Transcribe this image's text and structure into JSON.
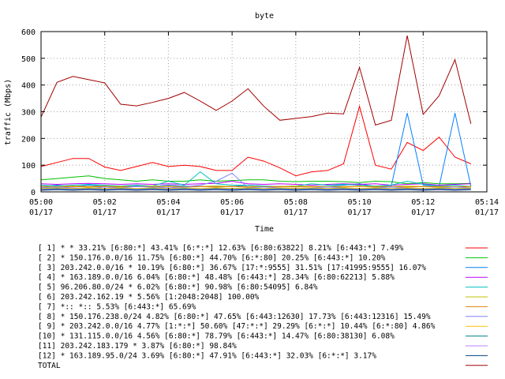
{
  "chart_data": {
    "type": "line",
    "title": "byte",
    "xlabel": "Time",
    "ylabel": "traffic (Mbps)",
    "ylim": [
      0,
      600
    ],
    "xlim": [
      0,
      28
    ],
    "yticks": [
      0,
      100,
      200,
      300,
      400,
      500,
      600
    ],
    "xticks": [
      {
        "x": 0,
        "time": "05:00",
        "date": "01/17"
      },
      {
        "x": 4,
        "time": "05:02",
        "date": "01/17"
      },
      {
        "x": 8,
        "time": "05:04",
        "date": "01/17"
      },
      {
        "x": 12,
        "time": "05:06",
        "date": "01/17"
      },
      {
        "x": 16,
        "time": "05:08",
        "date": "01/17"
      },
      {
        "x": 20,
        "time": "05:10",
        "date": "01/17"
      },
      {
        "x": 24,
        "time": "05:12",
        "date": "01/17"
      },
      {
        "x": 28,
        "time": "05:14",
        "date": "01/17"
      }
    ],
    "x": [
      0,
      1,
      2,
      3,
      4,
      5,
      6,
      7,
      8,
      9,
      10,
      11,
      12,
      13,
      14,
      15,
      16,
      17,
      18,
      19,
      20,
      21,
      22,
      23,
      24,
      25,
      26,
      27
    ],
    "series": [
      {
        "name": "[ 1] * * 33.21%  [6:80:*] 43.41% [6:*:*] 12.63% [6:80:63822] 8.21% [6:443:*] 7.49%",
        "color": "#ff0000",
        "values": [
          95,
          110,
          125,
          125,
          93,
          80,
          95,
          110,
          95,
          100,
          95,
          80,
          80,
          130,
          115,
          90,
          60,
          75,
          80,
          105,
          320,
          100,
          85,
          185,
          155,
          205,
          130,
          105
        ]
      },
      {
        "name": "[ 2] * 150.176.0.0/16 11.75%  [6:80:*] 44.70% [6:*:80] 20.25% [6:443:*] 10.20%",
        "color": "#00c000",
        "values": [
          45,
          50,
          55,
          60,
          50,
          45,
          40,
          45,
          40,
          40,
          45,
          40,
          42,
          45,
          45,
          40,
          38,
          40,
          40,
          38,
          35,
          40,
          38,
          30,
          35,
          30,
          30,
          32
        ]
      },
      {
        "name": "[ 3] 203.242.0.0/16 * 10.19%  [6:80:*] 36.67% [17:*:9555] 31.51% [17:41995:9555] 16.07%",
        "color": "#0080ff",
        "values": [
          20,
          25,
          20,
          25,
          22,
          20,
          22,
          20,
          25,
          22,
          20,
          22,
          20,
          25,
          22,
          20,
          22,
          20,
          20,
          25,
          30,
          20,
          22,
          295,
          25,
          20,
          295,
          20
        ]
      },
      {
        "name": "[ 4] * 163.189.0.0/16 6.04%  [6:80:*] 48.48% [6:443:*] 28.34% [6:80:62213] 5.88%",
        "color": "#c000ff",
        "values": [
          30,
          28,
          30,
          32,
          30,
          28,
          30,
          28,
          30,
          28,
          30,
          32,
          40,
          30,
          28,
          30,
          28,
          25,
          28,
          30,
          28,
          30,
          25,
          28,
          30,
          25,
          28,
          30
        ]
      },
      {
        "name": "[ 5] 96.206.80.0/24 * 6.02%  [6:80:*] 90.98% [6:80:54095] 6.84%",
        "color": "#00c0c0",
        "values": [
          25,
          22,
          25,
          28,
          25,
          22,
          25,
          22,
          40,
          25,
          75,
          30,
          25,
          25,
          22,
          20,
          22,
          30,
          25,
          28,
          25,
          22,
          25,
          40,
          28,
          22,
          25,
          20
        ]
      },
      {
        "name": "[ 6] 203.242.162.19 * 5.56%  [1:2048:2048] 100.00%",
        "color": "#c0c000",
        "values": [
          20,
          20,
          22,
          20,
          22,
          20,
          20,
          22,
          20,
          20,
          20,
          22,
          20,
          20,
          20,
          20,
          22,
          20,
          20,
          20,
          20,
          20,
          20,
          22,
          20,
          20,
          20,
          20
        ]
      },
      {
        "name": "[ 7] *:: *:: 5.53%  [6:443:*] 65.69%",
        "color": "#e08000",
        "values": [
          18,
          18,
          20,
          18,
          20,
          18,
          20,
          18,
          22,
          18,
          20,
          18,
          20,
          18,
          18,
          20,
          18,
          20,
          18,
          18,
          22,
          18,
          20,
          18,
          20,
          18,
          18,
          20
        ]
      },
      {
        "name": "[ 8] * 150.176.238.0/24 4.82%  [6:80:*] 47.65% [6:443:12630] 17.73% [6:443:12316] 15.49%",
        "color": "#8080ff",
        "values": [
          15,
          18,
          15,
          12,
          18,
          15,
          20,
          18,
          15,
          18,
          25,
          40,
          70,
          15,
          18,
          15,
          12,
          15,
          18,
          15,
          12,
          15,
          18,
          15,
          12,
          15,
          18,
          15
        ]
      },
      {
        "name": "[ 9] * 203.242.0.0/16 4.77%  [1:*:*] 50.60% [47:*:*] 29.29% [6:*:*] 10.44% [6:*:80] 4.86%",
        "color": "#ffc000",
        "values": [
          12,
          15,
          12,
          15,
          12,
          15,
          12,
          15,
          12,
          15,
          12,
          15,
          12,
          15,
          12,
          15,
          12,
          15,
          12,
          15,
          12,
          15,
          12,
          15,
          12,
          15,
          12,
          15
        ]
      },
      {
        "name": "[10] * 131.115.0.0/16 4.56%  [6:80:*] 78.79% [6:443:*] 14.47% [6:80:38130] 6.08%",
        "color": "#008080",
        "values": [
          10,
          12,
          10,
          12,
          10,
          12,
          10,
          12,
          10,
          12,
          10,
          12,
          10,
          12,
          10,
          12,
          10,
          12,
          10,
          12,
          10,
          12,
          10,
          12,
          10,
          12,
          10,
          12
        ]
      },
      {
        "name": "[11] 203.242.183.179 * 3.87%  [6:80:*] 98.84%",
        "color": "#c080ff",
        "values": [
          8,
          10,
          8,
          10,
          8,
          10,
          8,
          10,
          8,
          10,
          8,
          10,
          8,
          10,
          8,
          10,
          8,
          10,
          8,
          10,
          8,
          10,
          8,
          10,
          8,
          10,
          8,
          10
        ]
      },
      {
        "name": "[12] * 163.189.95.0/24 3.69%  [6:80:*] 47.91% [6:443:*] 32.03% [6:*:*] 3.17%",
        "color": "#004080",
        "values": [
          6,
          8,
          6,
          8,
          6,
          8,
          6,
          8,
          6,
          8,
          6,
          8,
          6,
          8,
          6,
          8,
          6,
          8,
          6,
          8,
          6,
          8,
          6,
          8,
          6,
          8,
          6,
          8
        ]
      },
      {
        "name": "TOTAL",
        "color": "#a00000",
        "values": [
          280,
          410,
          432,
          420,
          408,
          328,
          322,
          335,
          350,
          372,
          340,
          305,
          340,
          386,
          320,
          268,
          275,
          282,
          295,
          292,
          466,
          250,
          268,
          585,
          290,
          360,
          495,
          255
        ]
      }
    ]
  }
}
